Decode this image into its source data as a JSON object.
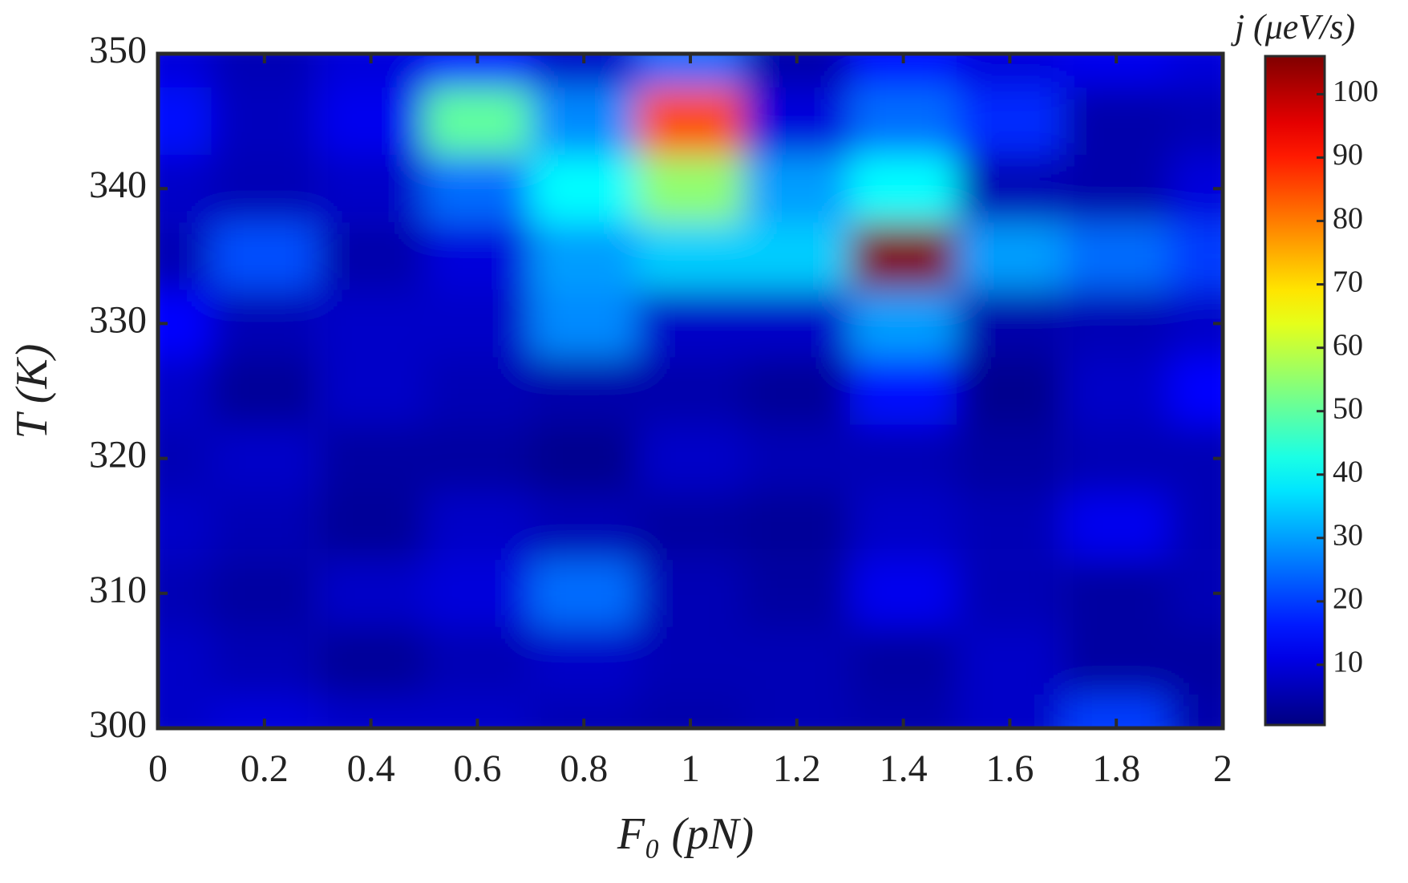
{
  "chart_data": {
    "type": "heatmap",
    "xlabel": "F₀ (pN)",
    "ylabel": "T (K)",
    "colorbar_label": "j (μeV/s)",
    "colormap": "jet",
    "x": [
      0,
      0.2,
      0.4,
      0.6,
      0.8,
      1,
      1.2,
      1.4,
      1.6,
      1.8,
      2
    ],
    "y": [
      300,
      305,
      310,
      315,
      320,
      325,
      330,
      335,
      340,
      345,
      350
    ],
    "z": [
      [
        8,
        10,
        8,
        8,
        6,
        5,
        6,
        5,
        8,
        20,
        5
      ],
      [
        8,
        6,
        3,
        6,
        8,
        6,
        6,
        4,
        8,
        4,
        4
      ],
      [
        6,
        4,
        8,
        10,
        25,
        6,
        4,
        12,
        6,
        4,
        6
      ],
      [
        8,
        6,
        3,
        8,
        6,
        4,
        3,
        8,
        6,
        12,
        6
      ],
      [
        6,
        8,
        4,
        4,
        2,
        8,
        6,
        6,
        4,
        6,
        6
      ],
      [
        8,
        3,
        8,
        6,
        5,
        5,
        3,
        15,
        2,
        8,
        14
      ],
      [
        14,
        6,
        8,
        8,
        28,
        8,
        8,
        30,
        5,
        6,
        8
      ],
      [
        6,
        22,
        5,
        10,
        30,
        35,
        35,
        106,
        30,
        25,
        20
      ],
      [
        8,
        6,
        8,
        25,
        40,
        55,
        30,
        40,
        6,
        5,
        10
      ],
      [
        15,
        7,
        12,
        50,
        28,
        85,
        10,
        25,
        18,
        5,
        6
      ],
      [
        10,
        6,
        10,
        15,
        8,
        25,
        5,
        15,
        10,
        12,
        10
      ]
    ],
    "xlim": [
      0,
      2
    ],
    "xticks": [
      0,
      0.2,
      0.4,
      0.6,
      0.8,
      1,
      1.2,
      1.4,
      1.6,
      1.8,
      2
    ],
    "ylim": [
      300,
      350
    ],
    "yticks": [
      300,
      310,
      320,
      330,
      340,
      350
    ],
    "clim": [
      0.5,
      106
    ],
    "cticks": [
      10,
      20,
      30,
      40,
      50,
      60,
      70,
      80,
      90,
      100
    ]
  }
}
